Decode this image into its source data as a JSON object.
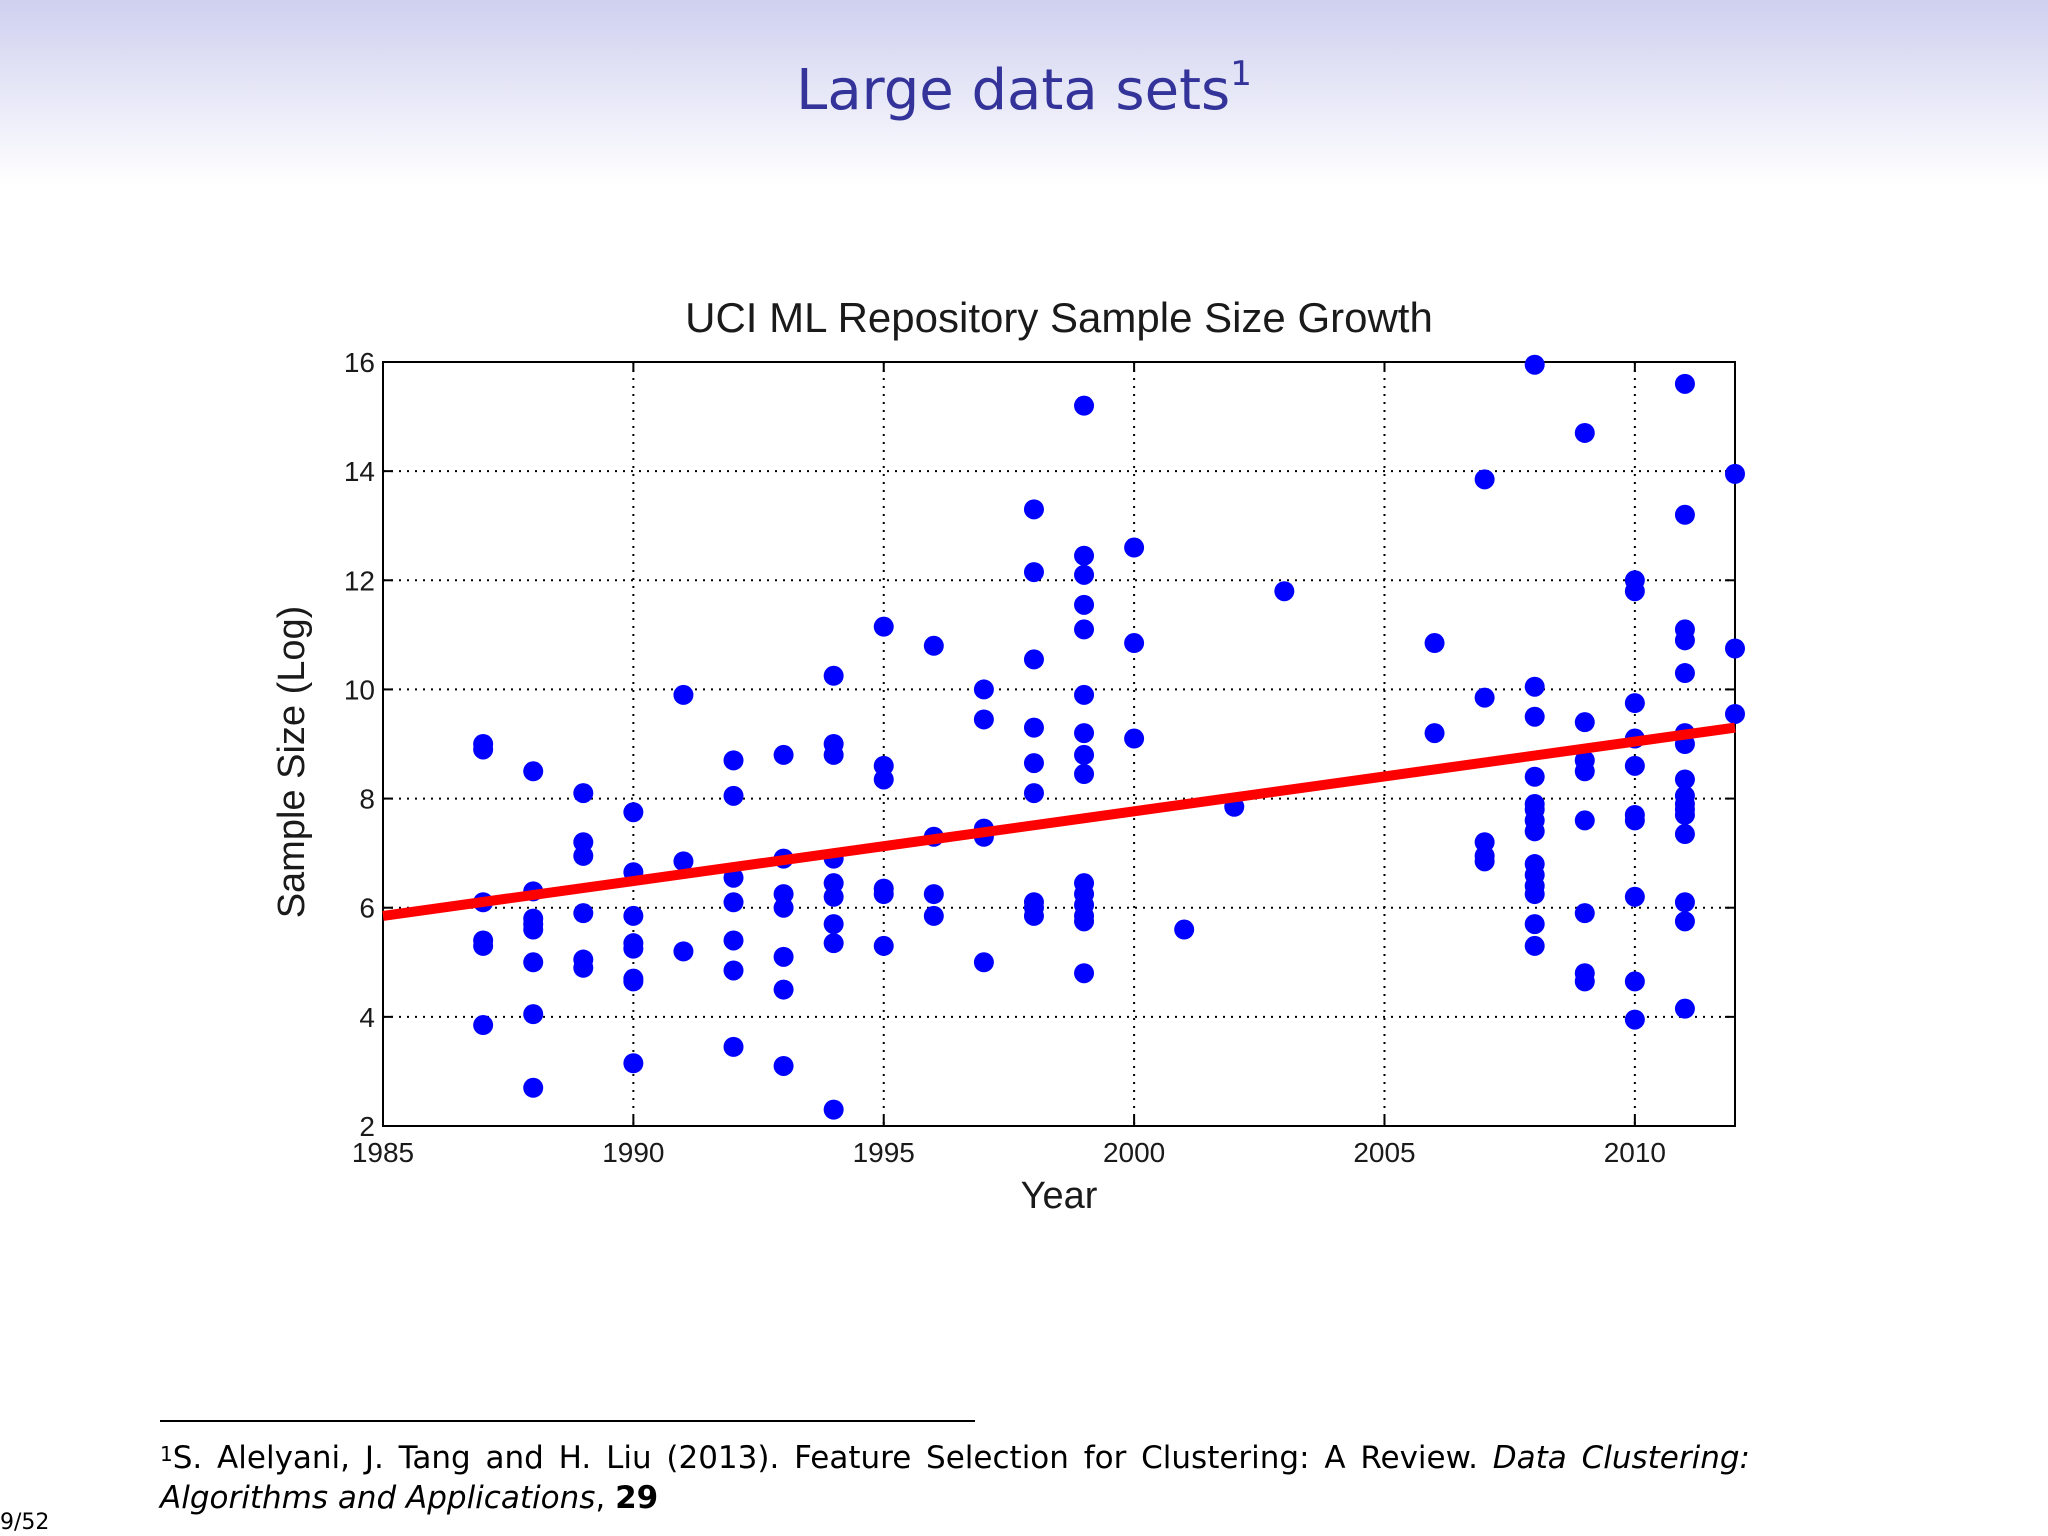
{
  "slide": {
    "title": "Large data sets",
    "title_footnote_mark": "1",
    "page_number": "9/52"
  },
  "footnote": {
    "mark": "1",
    "text": "S. Alelyani, J. Tang and H. Liu (2013). Feature Selection for Clustering: A Review. ",
    "journal": "Data Clustering: Algorithms and Applications",
    "sep": ", ",
    "volume": "29"
  },
  "colors": {
    "title": "#33339a",
    "points": "#0000ff",
    "trend": "#ff0000",
    "header_bg": "#d0d1f0"
  },
  "chart_data": {
    "type": "scatter",
    "title": "UCI ML Repository Sample Size Growth",
    "xlabel": "Year",
    "ylabel": "Sample Size (Log)",
    "xlim": [
      1985,
      2012
    ],
    "ylim": [
      2,
      16
    ],
    "xticks": [
      1985,
      1990,
      1995,
      2000,
      2005,
      2010
    ],
    "yticks": [
      2,
      4,
      6,
      8,
      10,
      12,
      14,
      16
    ],
    "grid": true,
    "trend_line": {
      "x": [
        1985,
        2012
      ],
      "y": [
        5.85,
        9.3
      ]
    },
    "points": [
      [
        1987,
        9.0
      ],
      [
        1987,
        8.9
      ],
      [
        1987,
        6.1
      ],
      [
        1987,
        5.4
      ],
      [
        1987,
        5.3
      ],
      [
        1987,
        3.85
      ],
      [
        1988,
        8.5
      ],
      [
        1988,
        6.3
      ],
      [
        1988,
        5.8
      ],
      [
        1988,
        5.7
      ],
      [
        1988,
        5.6
      ],
      [
        1988,
        5.0
      ],
      [
        1988,
        4.05
      ],
      [
        1988,
        2.7
      ],
      [
        1989,
        8.1
      ],
      [
        1989,
        7.2
      ],
      [
        1989,
        6.95
      ],
      [
        1989,
        5.9
      ],
      [
        1989,
        5.05
      ],
      [
        1989,
        4.9
      ],
      [
        1990,
        7.75
      ],
      [
        1990,
        6.65
      ],
      [
        1990,
        5.85
      ],
      [
        1990,
        5.35
      ],
      [
        1990,
        5.25
      ],
      [
        1990,
        4.7
      ],
      [
        1990,
        4.65
      ],
      [
        1990,
        3.15
      ],
      [
        1991,
        9.9
      ],
      [
        1991,
        6.85
      ],
      [
        1991,
        5.2
      ],
      [
        1992,
        8.7
      ],
      [
        1992,
        8.05
      ],
      [
        1992,
        6.55
      ],
      [
        1992,
        6.1
      ],
      [
        1992,
        5.4
      ],
      [
        1992,
        4.85
      ],
      [
        1992,
        3.45
      ],
      [
        1993,
        8.8
      ],
      [
        1993,
        6.9
      ],
      [
        1993,
        6.25
      ],
      [
        1993,
        6.0
      ],
      [
        1993,
        5.1
      ],
      [
        1993,
        4.5
      ],
      [
        1993,
        3.1
      ],
      [
        1994,
        10.25
      ],
      [
        1994,
        9.0
      ],
      [
        1994,
        8.8
      ],
      [
        1994,
        6.9
      ],
      [
        1994,
        6.45
      ],
      [
        1994,
        6.2
      ],
      [
        1994,
        5.7
      ],
      [
        1994,
        5.35
      ],
      [
        1994,
        2.3
      ],
      [
        1995,
        11.15
      ],
      [
        1995,
        8.6
      ],
      [
        1995,
        8.35
      ],
      [
        1995,
        6.35
      ],
      [
        1995,
        6.25
      ],
      [
        1995,
        5.3
      ],
      [
        1996,
        10.8
      ],
      [
        1996,
        7.3
      ],
      [
        1996,
        6.25
      ],
      [
        1996,
        5.85
      ],
      [
        1997,
        10.0
      ],
      [
        1997,
        9.45
      ],
      [
        1997,
        7.45
      ],
      [
        1997,
        7.3
      ],
      [
        1997,
        5.0
      ],
      [
        1998,
        13.3
      ],
      [
        1998,
        12.15
      ],
      [
        1998,
        10.55
      ],
      [
        1998,
        9.3
      ],
      [
        1998,
        8.65
      ],
      [
        1998,
        8.1
      ],
      [
        1998,
        6.1
      ],
      [
        1998,
        6.0
      ],
      [
        1998,
        5.85
      ],
      [
        1999,
        15.2
      ],
      [
        1999,
        12.45
      ],
      [
        1999,
        12.1
      ],
      [
        1999,
        11.55
      ],
      [
        1999,
        11.1
      ],
      [
        1999,
        9.9
      ],
      [
        1999,
        9.2
      ],
      [
        1999,
        8.8
      ],
      [
        1999,
        8.45
      ],
      [
        1999,
        6.45
      ],
      [
        1999,
        6.25
      ],
      [
        1999,
        6.05
      ],
      [
        1999,
        5.85
      ],
      [
        1999,
        5.75
      ],
      [
        1999,
        4.8
      ],
      [
        2000,
        12.6
      ],
      [
        2000,
        10.85
      ],
      [
        2000,
        9.1
      ],
      [
        2001,
        5.6
      ],
      [
        2002,
        7.85
      ],
      [
        2003,
        11.8
      ],
      [
        2006,
        10.85
      ],
      [
        2006,
        9.2
      ],
      [
        2007,
        13.85
      ],
      [
        2007,
        9.85
      ],
      [
        2007,
        7.2
      ],
      [
        2007,
        6.95
      ],
      [
        2007,
        6.85
      ],
      [
        2008,
        15.95
      ],
      [
        2008,
        10.05
      ],
      [
        2008,
        9.5
      ],
      [
        2008,
        8.4
      ],
      [
        2008,
        7.9
      ],
      [
        2008,
        7.8
      ],
      [
        2008,
        7.6
      ],
      [
        2008,
        7.4
      ],
      [
        2008,
        6.8
      ],
      [
        2008,
        6.6
      ],
      [
        2008,
        6.4
      ],
      [
        2008,
        6.25
      ],
      [
        2008,
        5.7
      ],
      [
        2008,
        5.3
      ],
      [
        2009,
        14.7
      ],
      [
        2009,
        9.4
      ],
      [
        2009,
        8.7
      ],
      [
        2009,
        8.5
      ],
      [
        2009,
        7.6
      ],
      [
        2009,
        5.9
      ],
      [
        2009,
        4.8
      ],
      [
        2009,
        4.65
      ],
      [
        2010,
        12.0
      ],
      [
        2010,
        11.8
      ],
      [
        2010,
        9.75
      ],
      [
        2010,
        9.1
      ],
      [
        2010,
        8.6
      ],
      [
        2010,
        7.7
      ],
      [
        2010,
        7.6
      ],
      [
        2010,
        6.2
      ],
      [
        2010,
        4.65
      ],
      [
        2010,
        3.95
      ],
      [
        2011,
        15.6
      ],
      [
        2011,
        13.2
      ],
      [
        2011,
        11.1
      ],
      [
        2011,
        10.9
      ],
      [
        2011,
        10.3
      ],
      [
        2011,
        9.2
      ],
      [
        2011,
        9.0
      ],
      [
        2011,
        8.35
      ],
      [
        2011,
        8.05
      ],
      [
        2011,
        7.9
      ],
      [
        2011,
        7.8
      ],
      [
        2011,
        7.7
      ],
      [
        2011,
        7.35
      ],
      [
        2011,
        6.1
      ],
      [
        2011,
        5.75
      ],
      [
        2011,
        4.15
      ],
      [
        2012,
        13.95
      ],
      [
        2012,
        10.75
      ],
      [
        2012,
        9.55
      ]
    ]
  }
}
